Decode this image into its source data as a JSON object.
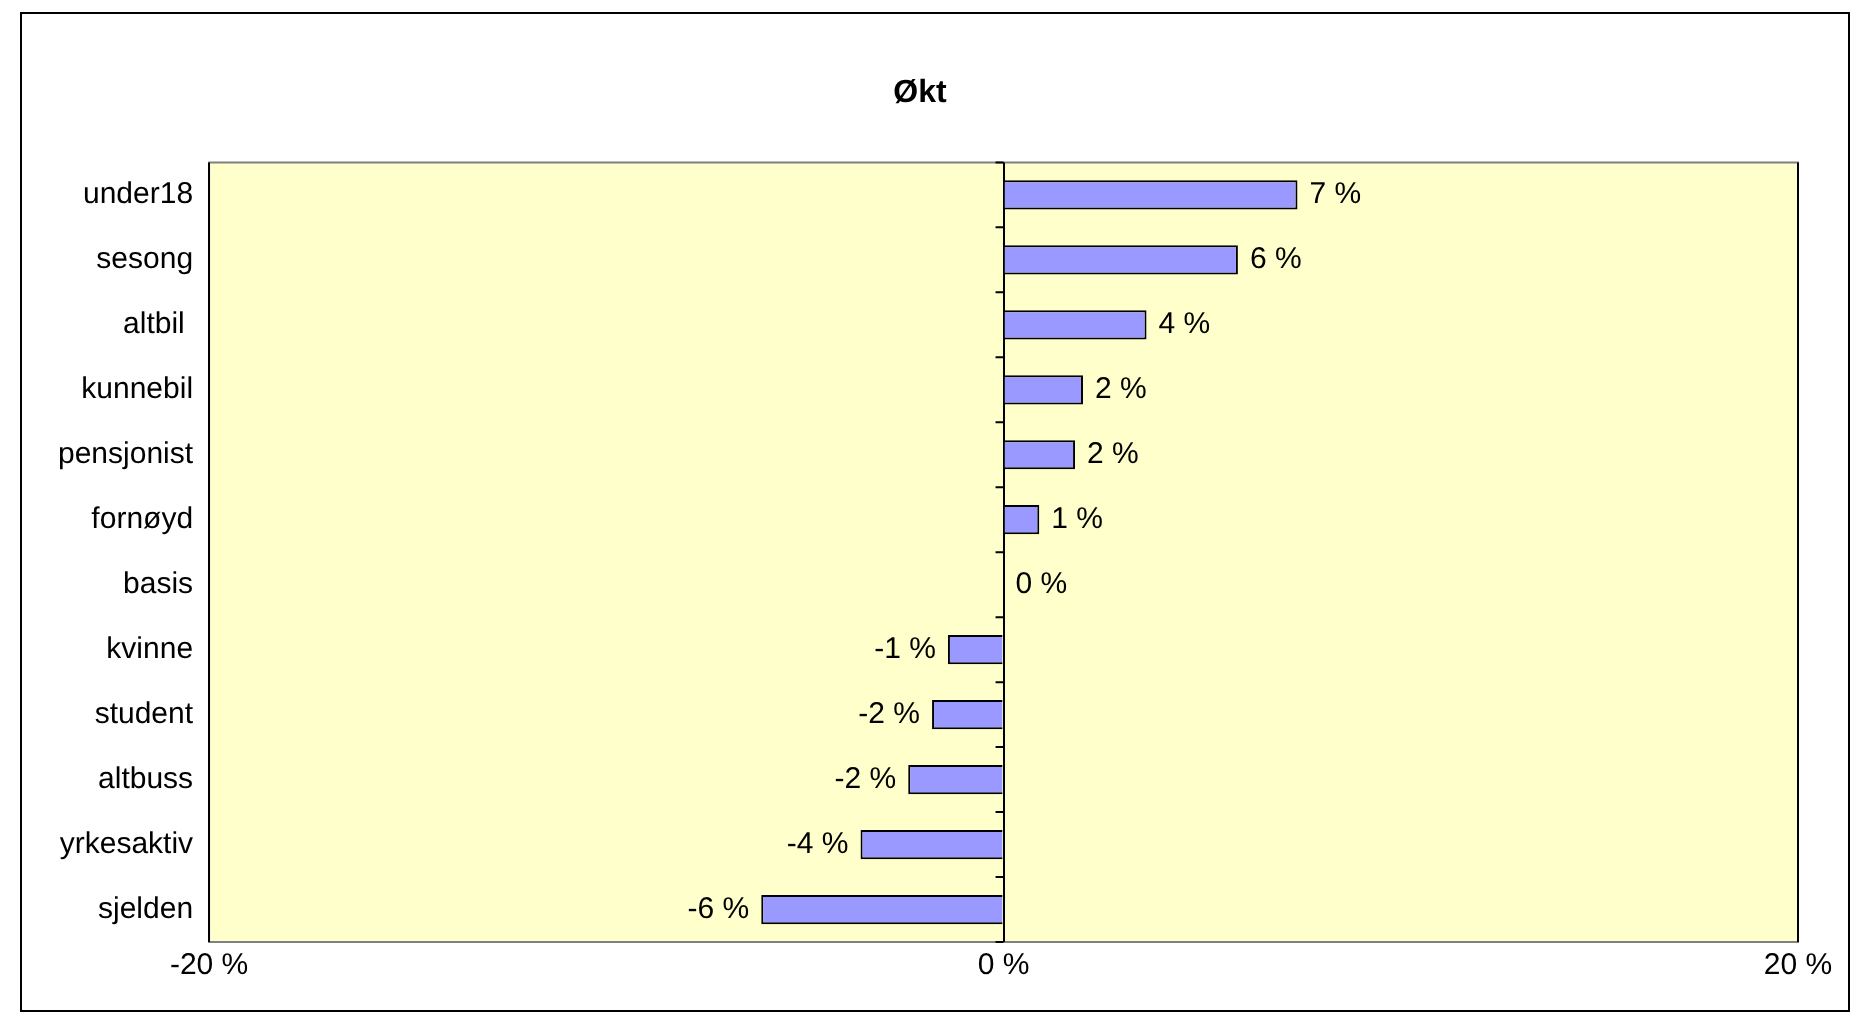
{
  "chart_data": {
    "type": "bar",
    "title": "Økt",
    "orientation": "horizontal",
    "categories": [
      "under18",
      "sesong",
      "altbil ",
      "kunnebil",
      "pensjonist",
      "fornøyd",
      "basis",
      "kvinne",
      "student",
      "altbuss",
      "yrkesaktiv",
      "sjelden"
    ],
    "values": [
      7.4,
      5.9,
      3.6,
      2.0,
      1.8,
      0.9,
      0,
      -1.4,
      -1.8,
      -2.4,
      -3.6,
      -6.1
    ],
    "value_labels": [
      "7 %",
      "6 %",
      "4 %",
      "2 %",
      "2 %",
      "1 %",
      "0 %",
      "-1 %",
      "-2 %",
      "-2 %",
      "-4 %",
      "-6 %"
    ],
    "color": "#9999ff",
    "xlim": [
      -20,
      20
    ],
    "xticks": [
      {
        "value": -20,
        "label": "-20 %"
      },
      {
        "value": 0,
        "label": "0 %"
      },
      {
        "value": 20,
        "label": "20 %"
      }
    ],
    "grid": "x",
    "legend": false
  }
}
